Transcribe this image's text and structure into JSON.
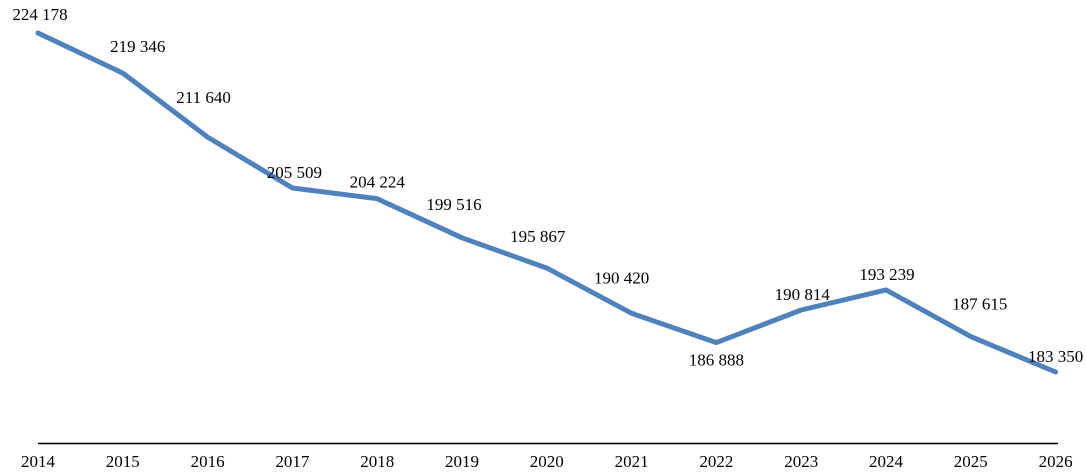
{
  "chart_data": {
    "type": "line",
    "title": "",
    "xlabel": "",
    "ylabel": "",
    "legend_position": "none",
    "grid": false,
    "y_axis_visible": false,
    "x_axis_visible": true,
    "categories": [
      "2014",
      "2015",
      "2016",
      "2017",
      "2018",
      "2019",
      "2020",
      "2021",
      "2022",
      "2023",
      "2024",
      "2025",
      "2026"
    ],
    "values": [
      224178,
      219346,
      211640,
      205509,
      204224,
      199516,
      195867,
      190420,
      186888,
      190814,
      193239,
      187615,
      183350
    ],
    "value_labels": [
      "224 178",
      "219 346",
      "211 640",
      "205 509",
      "204 224",
      "199 516",
      "195 867",
      "190 420",
      "186 888",
      "190 814",
      "193 239",
      "187 615",
      "183 350"
    ],
    "ylim": [
      183350,
      224178
    ],
    "line_color": "#4F81BD",
    "axis_color": "#000000",
    "text_color": "#000000",
    "label_dx": [
      2,
      15,
      -4,
      2,
      0,
      -8,
      -9,
      -10,
      0,
      1,
      1,
      9,
      0
    ],
    "label_dy": [
      -13,
      -21,
      -34,
      -10,
      -11,
      -28,
      -26,
      -30,
      23,
      -10,
      -10,
      -27,
      -10
    ]
  }
}
